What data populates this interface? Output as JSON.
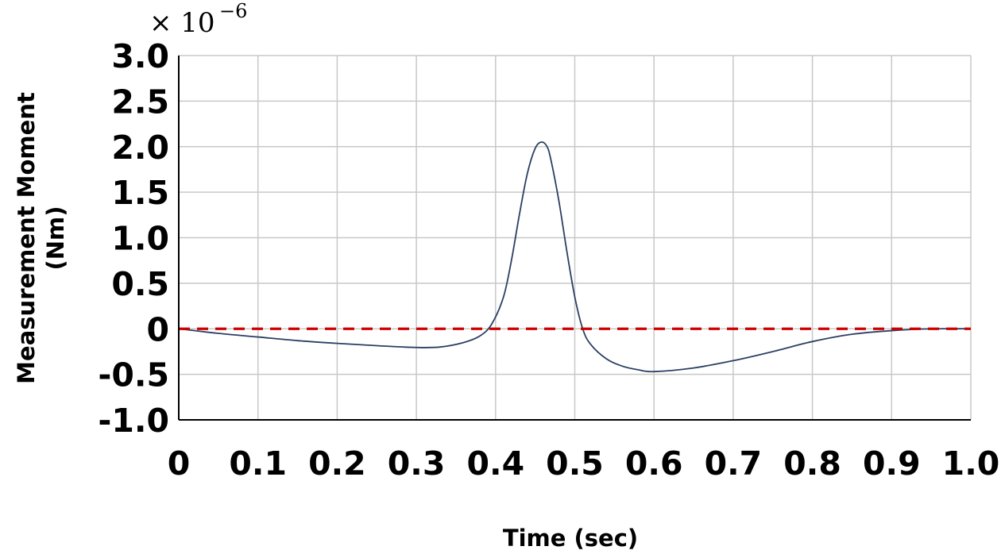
{
  "chart_data": {
    "type": "line",
    "title": "",
    "xlabel": "Time (sec)",
    "ylabel_line1": "Measurement Moment",
    "ylabel_line2": "(Nm)",
    "multiplier_base": "× 10",
    "multiplier_exponent": "−6",
    "xlim": [
      0,
      1.0
    ],
    "ylim": [
      -1.0,
      3.0
    ],
    "x_ticks": [
      0,
      0.1,
      0.2,
      0.3,
      0.4,
      0.5,
      0.6,
      0.7,
      0.8,
      0.9,
      1.0
    ],
    "x_tick_labels": [
      "0",
      "0.1",
      "0.2",
      "0.3",
      "0.4",
      "0.5",
      "0.6",
      "0.7",
      "0.8",
      "0.9",
      "1.0"
    ],
    "y_ticks": [
      -1.0,
      -0.5,
      0,
      0.5,
      1.0,
      1.5,
      2.0,
      2.5,
      3.0
    ],
    "y_tick_labels": [
      "-1.0",
      "-0.5",
      "0",
      "0.5",
      "1.0",
      "1.5",
      "2.0",
      "2.5",
      "3.0"
    ],
    "grid": true,
    "series": [
      {
        "color": "#2b3f63",
        "style": "solid",
        "x": [
          0,
          0.05,
          0.1,
          0.15,
          0.2,
          0.25,
          0.3,
          0.33,
          0.36,
          0.38,
          0.395,
          0.41,
          0.42,
          0.43,
          0.44,
          0.45,
          0.458,
          0.465,
          0.47,
          0.48,
          0.49,
          0.5,
          0.51,
          0.52,
          0.54,
          0.56,
          0.58,
          0.6,
          0.65,
          0.7,
          0.75,
          0.8,
          0.85,
          0.9,
          0.95,
          1.0
        ],
        "y": [
          0,
          -0.05,
          -0.09,
          -0.13,
          -0.16,
          -0.185,
          -0.205,
          -0.2,
          -0.15,
          -0.08,
          0.05,
          0.35,
          0.75,
          1.25,
          1.7,
          1.98,
          2.05,
          2.0,
          1.85,
          1.4,
          0.85,
          0.35,
          0.0,
          -0.17,
          -0.33,
          -0.41,
          -0.45,
          -0.47,
          -0.43,
          -0.35,
          -0.25,
          -0.14,
          -0.06,
          -0.02,
          0.0,
          0.0
        ]
      },
      {
        "color": "#cc0000",
        "style": "dashed",
        "x": [
          0,
          1.0
        ],
        "y": [
          0,
          0
        ]
      }
    ]
  }
}
